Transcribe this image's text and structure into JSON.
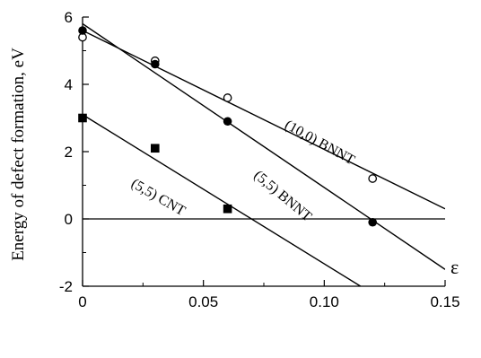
{
  "chart_data": {
    "type": "scatter",
    "title": "",
    "ylabel": "Energy of defect formation, eV",
    "xlabel": "ε",
    "xlim": [
      0,
      0.15
    ],
    "ylim": [
      -2,
      6
    ],
    "x_ticks": [
      0,
      0.05,
      0.1,
      0.15
    ],
    "x_tick_labels": [
      "0",
      "0.05",
      "0.10",
      "0.15"
    ],
    "y_ticks": [
      -2,
      0,
      2,
      4,
      6
    ],
    "y_tick_labels": [
      "-2",
      "0",
      "2",
      "4",
      "6"
    ],
    "zero_line": true,
    "grid": false,
    "series": [
      {
        "name": "(10,0) BNNT",
        "marker": "open-circle",
        "points": [
          [
            0,
            5.4
          ],
          [
            0.03,
            4.7
          ],
          [
            0.06,
            3.6
          ],
          [
            0.12,
            1.2
          ]
        ],
        "fit_line": [
          [
            0,
            5.6
          ],
          [
            0.15,
            0.3
          ]
        ]
      },
      {
        "name": "(5,5) BNNT",
        "marker": "filled-circle",
        "points": [
          [
            0,
            5.6
          ],
          [
            0.03,
            4.6
          ],
          [
            0.06,
            2.9
          ],
          [
            0.12,
            -0.1
          ]
        ],
        "fit_line": [
          [
            0,
            5.8
          ],
          [
            0.15,
            -1.5
          ]
        ]
      },
      {
        "name": "(5,5) CNT",
        "marker": "filled-square",
        "points": [
          [
            0,
            3.0
          ],
          [
            0.03,
            2.1
          ],
          [
            0.06,
            0.3
          ]
        ],
        "fit_line": [
          [
            0,
            3.1
          ],
          [
            0.115,
            -2.0
          ]
        ]
      }
    ]
  }
}
